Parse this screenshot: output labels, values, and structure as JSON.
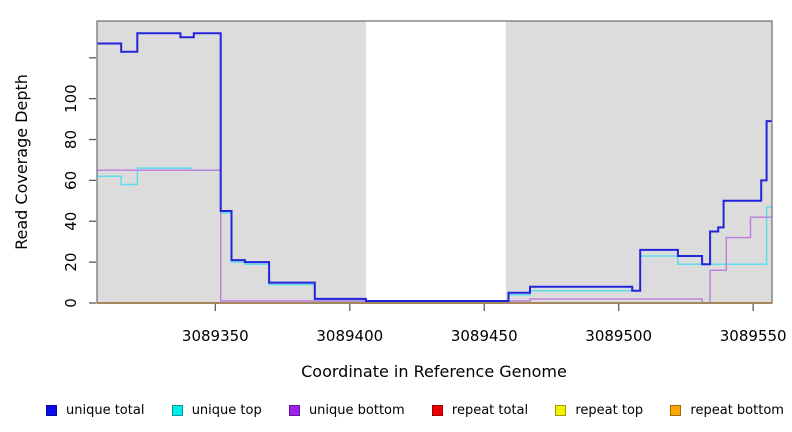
{
  "chart_data": {
    "type": "line",
    "subtype": "step",
    "title": "",
    "xlabel": "Coordinate in Reference Genome",
    "ylabel": "Read Coverage Depth",
    "xlim": [
      3089306,
      3089557
    ],
    "ylim": [
      0,
      138
    ],
    "grid": false,
    "legend_position": "bottom",
    "plot_bg": "#dcdcdc",
    "box_color": "#767676",
    "tick_color": "#5a5a5a",
    "mask_region": {
      "x0": 3089406,
      "x1": 3089458,
      "color": "#ffffff"
    },
    "x_ticks": [
      {
        "v": 3089350,
        "label": "3089350"
      },
      {
        "v": 3089400,
        "label": "3089400"
      },
      {
        "v": 3089450,
        "label": "3089450"
      },
      {
        "v": 3089500,
        "label": "3089500"
      },
      {
        "v": 3089550,
        "label": "3089550"
      }
    ],
    "y_ticks": [
      {
        "v": 0,
        "label": "0"
      },
      {
        "v": 20,
        "label": "20"
      },
      {
        "v": 40,
        "label": "40"
      },
      {
        "v": 60,
        "label": "60"
      },
      {
        "v": 80,
        "label": "80"
      },
      {
        "v": 100,
        "label": "100"
      },
      {
        "v": 120,
        "label": ""
      }
    ],
    "series": [
      {
        "name": "unique total",
        "color": "#2323dc",
        "legend_color": "#0b0bea",
        "lw": 2,
        "points": [
          [
            3089306,
            127
          ],
          [
            3089315,
            123
          ],
          [
            3089321,
            132
          ],
          [
            3089337,
            130
          ],
          [
            3089342,
            132
          ],
          [
            3089352,
            45
          ],
          [
            3089356,
            21
          ],
          [
            3089361,
            20
          ],
          [
            3089370,
            10
          ],
          [
            3089387,
            2
          ],
          [
            3089406,
            1
          ],
          [
            3089459,
            5
          ],
          [
            3089467,
            8
          ],
          [
            3089505,
            6
          ],
          [
            3089508,
            26
          ],
          [
            3089522,
            23
          ],
          [
            3089531,
            19
          ],
          [
            3089534,
            35
          ],
          [
            3089537,
            37
          ],
          [
            3089539,
            50
          ],
          [
            3089553,
            60
          ],
          [
            3089555,
            89
          ]
        ]
      },
      {
        "name": "unique top",
        "color": "#5fdded",
        "legend_color": "#00eded",
        "lw": 1.5,
        "points": [
          [
            3089306,
            62
          ],
          [
            3089315,
            58
          ],
          [
            3089321,
            66
          ],
          [
            3089341,
            65
          ],
          [
            3089352,
            44
          ],
          [
            3089356,
            20
          ],
          [
            3089361,
            19
          ],
          [
            3089370,
            9
          ],
          [
            3089387,
            1
          ],
          [
            3089459,
            4
          ],
          [
            3089467,
            6
          ],
          [
            3089508,
            23
          ],
          [
            3089522,
            19
          ],
          [
            3089555,
            47
          ]
        ]
      },
      {
        "name": "unique bottom",
        "color": "#bd7ddc",
        "legend_color": "#a020f0",
        "lw": 1.4,
        "points": [
          [
            3089306,
            65
          ],
          [
            3089352,
            1
          ],
          [
            3089467,
            2
          ],
          [
            3089531,
            0
          ],
          [
            3089534,
            16
          ],
          [
            3089540,
            32
          ],
          [
            3089549,
            42
          ]
        ]
      },
      {
        "name": "repeat total",
        "color": "#dd1111",
        "legend_color": "#ee0000",
        "lw": 1.2,
        "points": [
          [
            3089306,
            0
          ]
        ]
      },
      {
        "name": "repeat top",
        "color": "#eded00",
        "legend_color": "#f2f200",
        "lw": 1.2,
        "points": [
          [
            3089306,
            0
          ]
        ]
      },
      {
        "name": "repeat bottom",
        "color": "#ff9f0a",
        "legend_color": "#ffa500",
        "lw": 1.8,
        "points": [
          [
            3089306,
            0
          ]
        ]
      }
    ],
    "draw_order": [
      3,
      4,
      1,
      2,
      0,
      5
    ]
  }
}
